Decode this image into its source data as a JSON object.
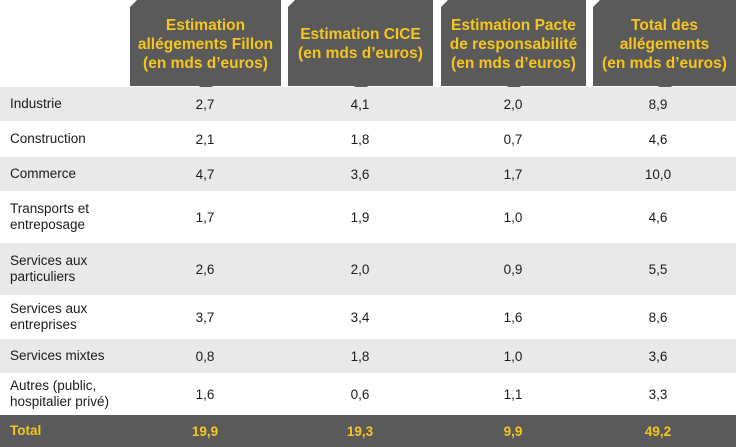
{
  "headers": [
    "Estimation\nallégements Fillon\n(en mds d’euros)",
    "Estimation CICE\n(en mds d’euros)",
    "Estimation Pacte\nde responsabilité\n(en mds d’euros)",
    "Total des\nallégements\n(en mds d’euros)"
  ],
  "rows": [
    {
      "label": "Industrie",
      "values": [
        "2,7",
        "4,1",
        "2,0",
        "8,9"
      ]
    },
    {
      "label": "Construction",
      "values": [
        "2,1",
        "1,8",
        "0,7",
        "4,6"
      ]
    },
    {
      "label": "Commerce",
      "values": [
        "4,7",
        "3,6",
        "1,7",
        "10,0"
      ]
    },
    {
      "label": "Transports et\nentreposage",
      "values": [
        "1,7",
        "1,9",
        "1,0",
        "4,6"
      ]
    },
    {
      "label": "Services aux\nparticuliers",
      "values": [
        "2,6",
        "2,0",
        "0,9",
        "5,5"
      ]
    },
    {
      "label": "Services aux\nentreprises",
      "values": [
        "3,7",
        "3,4",
        "1,6",
        "8,6"
      ]
    },
    {
      "label": "Services mixtes",
      "values": [
        "0,8",
        "1,8",
        "1,0",
        "3,6"
      ]
    },
    {
      "label": "Autres (public,\nhospitalier privé)",
      "values": [
        "1,6",
        "0,6",
        "1,1",
        "3,3"
      ]
    }
  ],
  "total": {
    "label": "Total",
    "values": [
      "19,9",
      "19,3",
      "9,9",
      "49,2"
    ]
  },
  "colors": {
    "header_bg": "#5a5a5a",
    "header_text": "#f6c61f",
    "alt_row": "#e9e9ea"
  }
}
